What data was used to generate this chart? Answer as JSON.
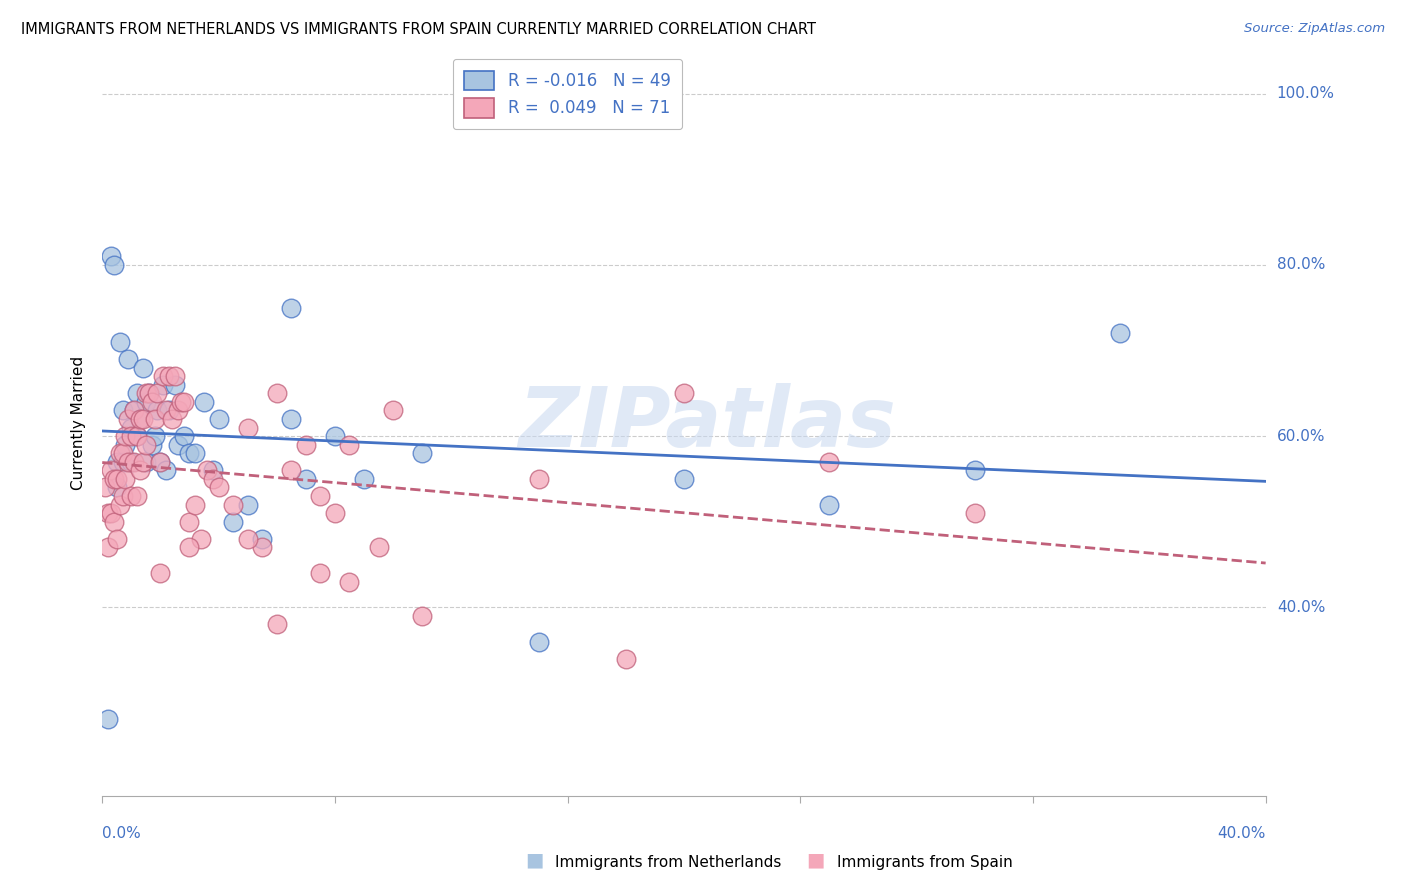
{
  "title": "IMMIGRANTS FROM NETHERLANDS VS IMMIGRANTS FROM SPAIN CURRENTLY MARRIED CORRELATION CHART",
  "source": "Source: ZipAtlas.com",
  "ylabel": "Currently Married",
  "xlim": [
    0.0,
    0.4
  ],
  "ylim": [
    0.18,
    1.05
  ],
  "yticks": [
    0.4,
    0.6,
    0.8,
    1.0
  ],
  "ytick_labels": [
    "40.0%",
    "60.0%",
    "80.0%",
    "100.0%"
  ],
  "color_nl": "#a8c4e0",
  "color_sp": "#f4a7b9",
  "color_line_nl": "#4472c4",
  "color_line_sp": "#c0607a",
  "watermark": "ZIPatlas",
  "nl_x": [
    0.002,
    0.003,
    0.004,
    0.005,
    0.005,
    0.006,
    0.007,
    0.007,
    0.008,
    0.009,
    0.01,
    0.01,
    0.011,
    0.012,
    0.012,
    0.013,
    0.014,
    0.015,
    0.015,
    0.016,
    0.017,
    0.018,
    0.019,
    0.02,
    0.021,
    0.022,
    0.023,
    0.025,
    0.026,
    0.028,
    0.03,
    0.032,
    0.035,
    0.038,
    0.04,
    0.045,
    0.05,
    0.055,
    0.065,
    0.07,
    0.08,
    0.09,
    0.11,
    0.15,
    0.2,
    0.25,
    0.3,
    0.35,
    0.065
  ],
  "nl_y": [
    0.27,
    0.81,
    0.8,
    0.57,
    0.54,
    0.71,
    0.63,
    0.57,
    0.59,
    0.69,
    0.61,
    0.57,
    0.63,
    0.65,
    0.6,
    0.62,
    0.68,
    0.64,
    0.57,
    0.65,
    0.59,
    0.6,
    0.63,
    0.57,
    0.66,
    0.56,
    0.63,
    0.66,
    0.59,
    0.6,
    0.58,
    0.58,
    0.64,
    0.56,
    0.62,
    0.5,
    0.52,
    0.48,
    0.62,
    0.55,
    0.6,
    0.55,
    0.58,
    0.36,
    0.55,
    0.52,
    0.56,
    0.72,
    0.75
  ],
  "sp_x": [
    0.001,
    0.002,
    0.002,
    0.003,
    0.003,
    0.004,
    0.004,
    0.005,
    0.005,
    0.006,
    0.006,
    0.007,
    0.007,
    0.008,
    0.008,
    0.009,
    0.009,
    0.01,
    0.01,
    0.011,
    0.011,
    0.012,
    0.012,
    0.013,
    0.013,
    0.014,
    0.014,
    0.015,
    0.015,
    0.016,
    0.017,
    0.018,
    0.019,
    0.02,
    0.021,
    0.022,
    0.023,
    0.024,
    0.025,
    0.026,
    0.027,
    0.028,
    0.03,
    0.032,
    0.034,
    0.036,
    0.038,
    0.04,
    0.045,
    0.05,
    0.055,
    0.06,
    0.065,
    0.07,
    0.075,
    0.08,
    0.085,
    0.1,
    0.15,
    0.2,
    0.25,
    0.3,
    0.02,
    0.03,
    0.05,
    0.06,
    0.075,
    0.085,
    0.095,
    0.11,
    0.18
  ],
  "sp_y": [
    0.54,
    0.47,
    0.51,
    0.56,
    0.51,
    0.55,
    0.5,
    0.55,
    0.48,
    0.58,
    0.52,
    0.58,
    0.53,
    0.6,
    0.55,
    0.62,
    0.57,
    0.6,
    0.53,
    0.63,
    0.57,
    0.6,
    0.53,
    0.62,
    0.56,
    0.62,
    0.57,
    0.65,
    0.59,
    0.65,
    0.64,
    0.62,
    0.65,
    0.57,
    0.67,
    0.63,
    0.67,
    0.62,
    0.67,
    0.63,
    0.64,
    0.64,
    0.5,
    0.52,
    0.48,
    0.56,
    0.55,
    0.54,
    0.52,
    0.61,
    0.47,
    0.65,
    0.56,
    0.59,
    0.53,
    0.51,
    0.59,
    0.63,
    0.55,
    0.65,
    0.57,
    0.51,
    0.44,
    0.47,
    0.48,
    0.38,
    0.44,
    0.43,
    0.47,
    0.39,
    0.34
  ],
  "legend_labels": [
    "R = -0.016   N = 49",
    "R =  0.049   N = 71"
  ],
  "bottom_labels": [
    "Immigrants from Netherlands",
    "Immigrants from Spain"
  ]
}
